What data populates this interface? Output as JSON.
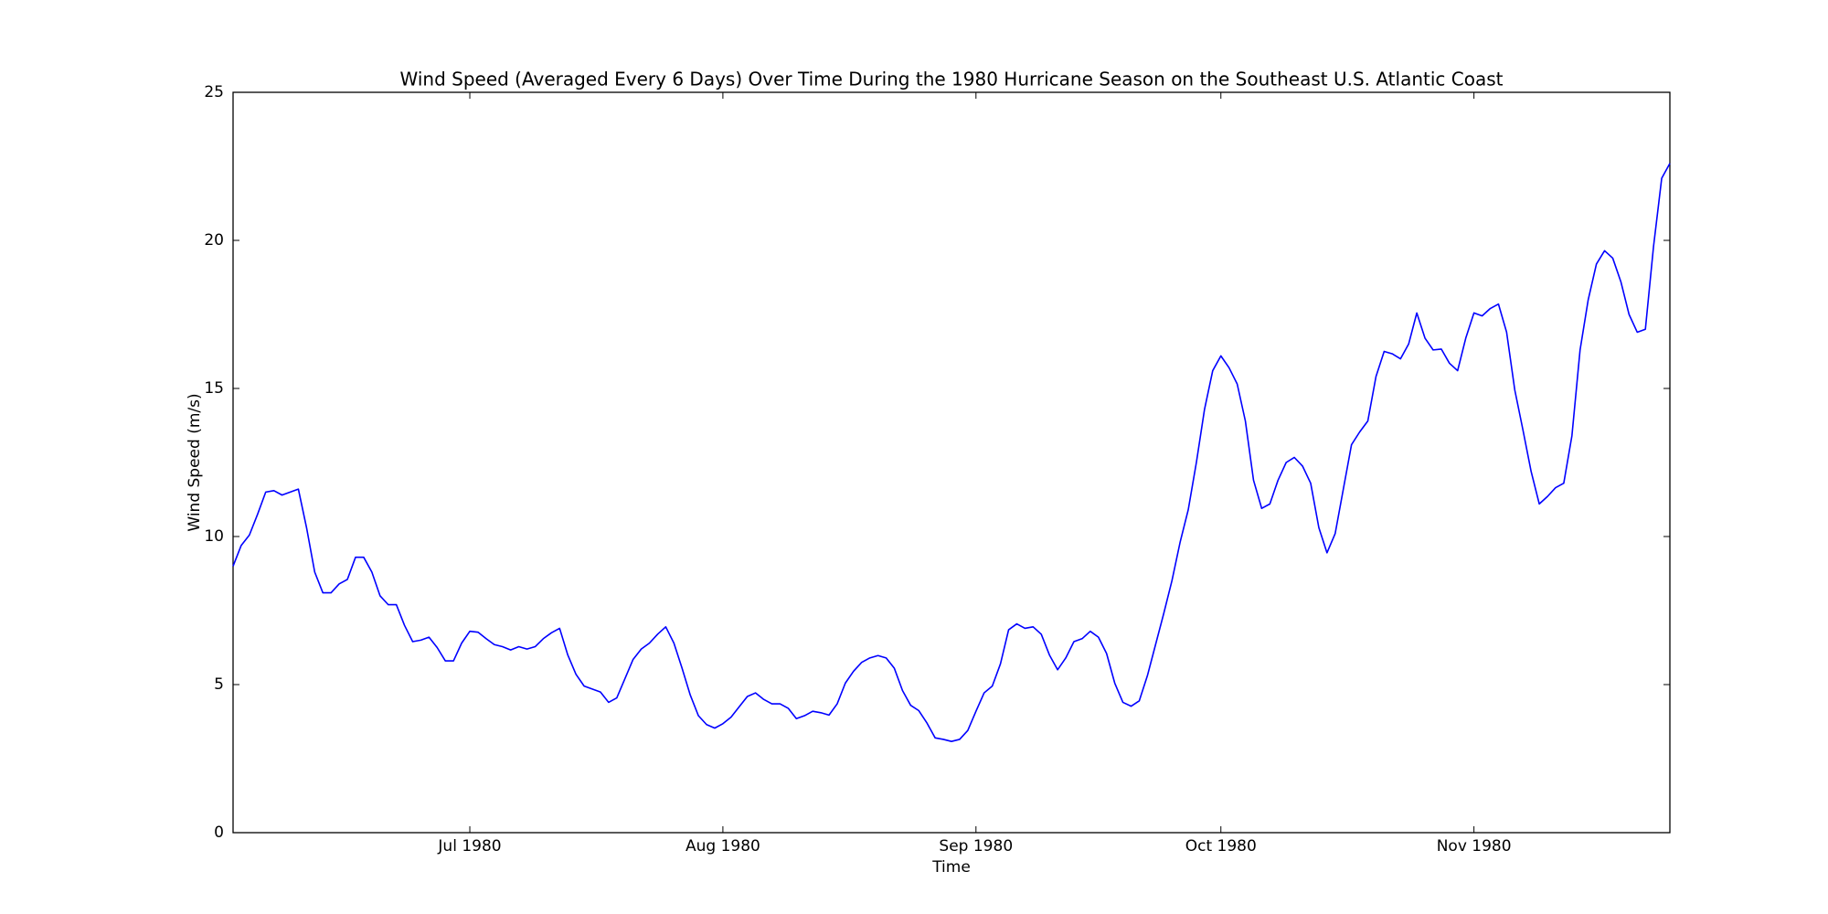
{
  "chart_data": {
    "type": "line",
    "title": "Wind Speed (Averaged Every 6 Days) Over Time During the 1980 Hurricane Season on the Southeast U.S. Atlantic Coast",
    "x_label": "Time",
    "y_label": "Wind Speed (m/s)",
    "categories": [
      null,
      null,
      null,
      null,
      null,
      null,
      null,
      null,
      null,
      null,
      null,
      null,
      null,
      null,
      null,
      null,
      null,
      null,
      null,
      null,
      null,
      null,
      null,
      null,
      null,
      null,
      null,
      null,
      null,
      "Jul 1980",
      null,
      null,
      null,
      null,
      null,
      null,
      null,
      null,
      null,
      null,
      null,
      null,
      null,
      null,
      null,
      null,
      null,
      null,
      null,
      null,
      null,
      null,
      null,
      null,
      null,
      null,
      null,
      null,
      null,
      null,
      "Aug 1980",
      null,
      null,
      null,
      null,
      null,
      null,
      null,
      null,
      null,
      null,
      null,
      null,
      null,
      null,
      null,
      null,
      null,
      null,
      null,
      null,
      null,
      null,
      null,
      null,
      null,
      null,
      null,
      null,
      null,
      null,
      "Sep 1980",
      null,
      null,
      null,
      null,
      null,
      null,
      null,
      null,
      null,
      null,
      null,
      null,
      null,
      null,
      null,
      null,
      null,
      null,
      null,
      null,
      null,
      null,
      null,
      null,
      null,
      null,
      null,
      null,
      null,
      "Oct 1980",
      null,
      null,
      null,
      null,
      null,
      null,
      null,
      null,
      null,
      null,
      null,
      null,
      null,
      null,
      null,
      null,
      null,
      null,
      null,
      null,
      null,
      null,
      null,
      null,
      null,
      null,
      null,
      null,
      null,
      null,
      "Nov 1980",
      null,
      null,
      null,
      null,
      null,
      null,
      null,
      null,
      null,
      null,
      null,
      null,
      null,
      null,
      null,
      null,
      null,
      null,
      null,
      null,
      null,
      null,
      null,
      null
    ],
    "series": [
      {
        "name": "Wind Speed",
        "color": "#0000ff",
        "values": [
          9.0,
          9.7,
          10.05,
          10.75,
          11.5,
          11.55,
          11.4,
          11.5,
          11.6,
          10.3,
          8.8,
          8.1,
          8.1,
          8.4,
          8.55,
          9.3,
          9.3,
          8.8,
          8.0,
          7.7,
          7.7,
          7.0,
          6.45,
          6.5,
          6.6,
          6.25,
          5.8,
          5.8,
          6.4,
          6.8,
          6.77,
          6.55,
          6.35,
          6.28,
          6.17,
          6.28,
          6.2,
          6.28,
          6.55,
          6.75,
          6.9,
          6.0,
          5.35,
          4.95,
          4.85,
          4.75,
          4.4,
          4.55,
          5.2,
          5.85,
          6.2,
          6.4,
          6.7,
          6.95,
          6.4,
          5.55,
          4.65,
          3.95,
          3.65,
          3.53,
          3.68,
          3.9,
          4.25,
          4.6,
          4.72,
          4.5,
          4.35,
          4.35,
          4.2,
          3.85,
          3.95,
          4.1,
          4.05,
          3.97,
          4.35,
          5.05,
          5.45,
          5.75,
          5.9,
          5.98,
          5.9,
          5.55,
          4.8,
          4.3,
          4.12,
          3.7,
          3.2,
          3.15,
          3.08,
          3.15,
          3.45,
          4.1,
          4.72,
          4.95,
          5.7,
          6.85,
          7.05,
          6.9,
          6.95,
          6.7,
          6.0,
          5.5,
          5.9,
          6.45,
          6.55,
          6.8,
          6.6,
          6.05,
          5.05,
          4.4,
          4.27,
          4.45,
          5.3,
          6.35,
          7.4,
          8.5,
          9.8,
          10.9,
          12.5,
          14.3,
          15.6,
          16.1,
          15.7,
          15.15,
          13.9,
          11.9,
          10.95,
          11.1,
          11.9,
          12.5,
          12.67,
          12.38,
          11.8,
          10.3,
          9.45,
          10.1,
          11.6,
          13.1,
          13.53,
          13.9,
          15.4,
          16.25,
          16.17,
          16.0,
          16.5,
          17.55,
          16.7,
          16.3,
          16.33,
          15.85,
          15.6,
          16.7,
          17.55,
          17.45,
          17.7,
          17.85,
          16.9,
          14.95,
          13.6,
          12.2,
          11.1,
          11.35,
          11.65,
          11.8,
          13.4,
          16.3,
          18.0,
          19.2,
          19.65,
          19.4,
          18.6,
          17.5,
          16.9,
          17.0,
          19.8,
          22.1,
          22.6
        ]
      }
    ],
    "ylim": [
      0,
      25
    ],
    "yticks": [
      0,
      5,
      10,
      15,
      20,
      25
    ],
    "grid": false
  }
}
